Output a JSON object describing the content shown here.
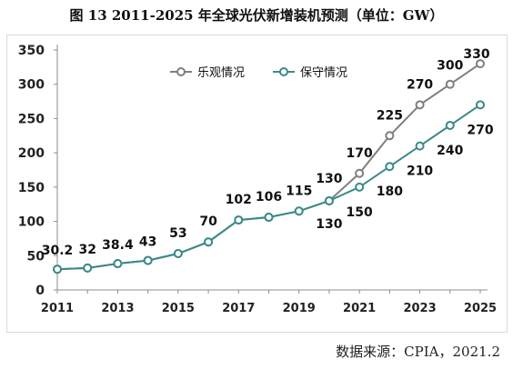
{
  "figure": {
    "title": "图 13  2011-2025 年全球光伏新增装机预测（单位：GW）",
    "source": "数据来源：CPIA，2021.2"
  },
  "chart_data": {
    "type": "line",
    "title": "图 13  2011-2025 年全球光伏新增装机预测（单位：GW）",
    "xlabel": "",
    "ylabel": "",
    "x": [
      2011,
      2012,
      2013,
      2014,
      2015,
      2016,
      2017,
      2018,
      2019,
      2020,
      2021,
      2022,
      2023,
      2024,
      2025
    ],
    "x_ticks": [
      2011,
      2013,
      2015,
      2017,
      2019,
      2021,
      2023,
      2025
    ],
    "ylim": [
      0,
      350
    ],
    "y_ticks": [
      0,
      50,
      100,
      150,
      200,
      250,
      300,
      350
    ],
    "grid": false,
    "legend_position": "top-center",
    "series": [
      {
        "name": "乐观情况",
        "color": "#7f7f7f",
        "values": [
          30.2,
          32,
          38.4,
          43,
          53,
          70,
          102,
          106,
          115,
          130,
          170,
          225,
          270,
          300,
          330
        ],
        "labels": [
          "30.2",
          "32",
          "38.4",
          "43",
          "53",
          "70",
          "102",
          "106",
          "115",
          "130",
          "170",
          "225",
          "270",
          "300",
          "330"
        ]
      },
      {
        "name": "保守情况",
        "color": "#3a8a88",
        "values": [
          30.2,
          32,
          38.4,
          43,
          53,
          70,
          102,
          106,
          115,
          130,
          150,
          180,
          210,
          240,
          270
        ],
        "labels": [
          "",
          "",
          "",
          "",
          "",
          "",
          "",
          "",
          "",
          "130",
          "150",
          "180",
          "210",
          "240",
          "270"
        ]
      }
    ]
  }
}
